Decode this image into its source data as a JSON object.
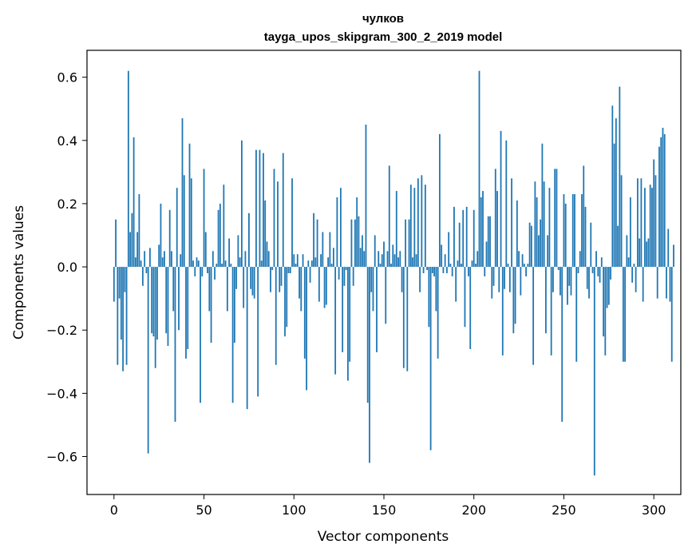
{
  "chart_data": {
    "type": "bar",
    "title": "чулков",
    "subtitle": "tayga_upos_skipgram_300_2_2019 model",
    "xlabel": "Vector components",
    "ylabel": "Components values",
    "xlim": [
      -15,
      315
    ],
    "ylim": [
      -0.72,
      0.685
    ],
    "xticks": [
      0,
      50,
      100,
      150,
      200,
      250,
      300
    ],
    "yticks": [
      -0.6,
      -0.4,
      -0.2,
      0.0,
      0.2,
      0.4,
      0.6
    ],
    "ytick_labels": [
      "−0.6",
      "−0.4",
      "−0.2",
      "0.0",
      "0.2",
      "0.4",
      "0.6"
    ],
    "bar_color": "#1f77b4",
    "grid": false,
    "values": [
      -0.11,
      0.15,
      -0.31,
      -0.1,
      -0.23,
      -0.33,
      -0.08,
      -0.31,
      0.62,
      0.11,
      0.17,
      0.41,
      0.03,
      0.11,
      0.23,
      0.02,
      -0.06,
      0.05,
      -0.02,
      -0.59,
      0.06,
      -0.21,
      -0.22,
      -0.32,
      -0.23,
      0.07,
      0.2,
      0.03,
      0.05,
      -0.21,
      -0.25,
      0.18,
      0.05,
      -0.14,
      -0.49,
      0.25,
      -0.2,
      0.04,
      0.47,
      0.29,
      -0.29,
      -0.26,
      0.39,
      0.28,
      0.02,
      -0.03,
      0.03,
      0.02,
      -0.43,
      -0.03,
      0.31,
      0.11,
      -0.02,
      -0.14,
      -0.24,
      0.05,
      -0.04,
      0.01,
      0.18,
      0.2,
      0.01,
      0.26,
      0.02,
      -0.14,
      0.09,
      0.01,
      -0.43,
      -0.24,
      -0.07,
      0.1,
      0.03,
      0.4,
      -0.13,
      0.05,
      -0.45,
      0.17,
      -0.07,
      -0.09,
      -0.1,
      0.37,
      -0.41,
      0.37,
      0.02,
      0.36,
      0.21,
      0.08,
      0.05,
      -0.08,
      -0.01,
      0.31,
      -0.31,
      0.27,
      -0.08,
      -0.06,
      0.36,
      -0.22,
      -0.19,
      -0.02,
      -0.02,
      0.28,
      0.04,
      0.01,
      0.04,
      -0.1,
      -0.14,
      0.04,
      -0.29,
      -0.39,
      0.02,
      -0.05,
      0.02,
      0.17,
      0.03,
      0.15,
      -0.11,
      0.04,
      0.11,
      -0.13,
      -0.12,
      0.03,
      0.11,
      0.01,
      0.06,
      -0.34,
      0.22,
      -0.04,
      0.25,
      -0.27,
      -0.06,
      -0.01,
      -0.36,
      -0.3,
      0.15,
      -0.06,
      0.15,
      0.22,
      0.16,
      0.06,
      0.1,
      0.05,
      0.45,
      -0.43,
      -0.62,
      -0.08,
      -0.14,
      0.1,
      -0.27,
      0.05,
      0.01,
      0.04,
      0.08,
      -0.18,
      0.05,
      0.32,
      0.01,
      0.07,
      0.04,
      0.24,
      0.03,
      0.05,
      -0.08,
      -0.32,
      0.15,
      -0.33,
      0.15,
      0.26,
      0.03,
      0.25,
      0.04,
      0.28,
      -0.08,
      0.29,
      -0.02,
      0.26,
      -0.01,
      -0.19,
      -0.58,
      -0.02,
      -0.03,
      -0.14,
      -0.29,
      0.42,
      0.07,
      -0.02,
      0.04,
      -0.02,
      0.11,
      0.01,
      -0.03,
      0.19,
      -0.11,
      0.02,
      0.14,
      0.01,
      0.18,
      -0.19,
      0.19,
      -0.03,
      -0.26,
      0.02,
      0.18,
      0.01,
      0.05,
      0.62,
      0.22,
      0.24,
      -0.03,
      0.08,
      0.16,
      0.16,
      -0.1,
      -0.06,
      0.31,
      0.24,
      -0.08,
      0.43,
      -0.28,
      -0.07,
      0.4,
      0.01,
      -0.08,
      0.28,
      -0.21,
      -0.18,
      0.21,
      0.05,
      -0.09,
      0.04,
      0.01,
      -0.03,
      0.01,
      0.14,
      0.13,
      -0.31,
      0.27,
      0.22,
      0.1,
      0.15,
      0.39,
      0.27,
      -0.21,
      0.1,
      0.25,
      -0.28,
      -0.08,
      0.31,
      0.31,
      -0.01,
      -0.09,
      -0.49,
      0.23,
      0.2,
      -0.12,
      -0.06,
      -0.09,
      0.23,
      0.23,
      -0.3,
      -0.02,
      0.05,
      0.23,
      0.32,
      0.19,
      -0.07,
      -0.1,
      0.14,
      -0.02,
      -0.66,
      0.05,
      -0.03,
      -0.05,
      0.03,
      -0.22,
      -0.28,
      -0.13,
      -0.12,
      -0.04,
      0.51,
      0.39,
      0.47,
      0.13,
      0.57,
      0.29,
      -0.3,
      -0.3,
      0.1,
      0.03,
      0.22,
      -0.05,
      0.01,
      -0.08,
      0.28,
      0.09,
      0.28,
      -0.11,
      0.25,
      0.08,
      0.09,
      0.26,
      0.25,
      0.34,
      0.29,
      -0.1,
      0.38,
      0.41,
      0.44,
      0.42,
      -0.1,
      0.12,
      -0.11,
      -0.3,
      0.07
    ]
  }
}
